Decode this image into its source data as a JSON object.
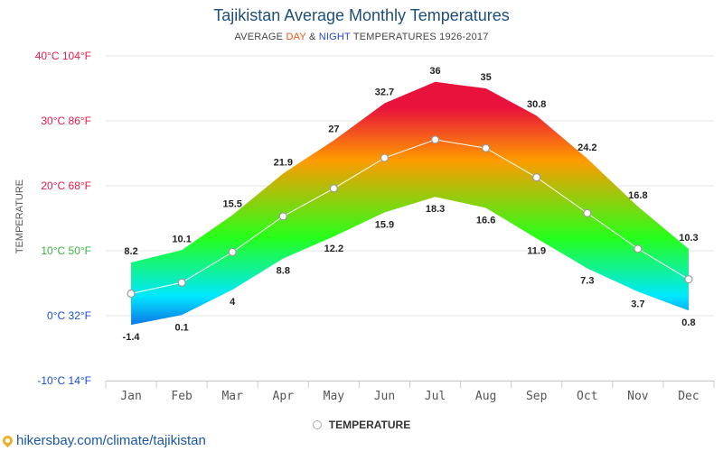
{
  "header": {
    "title": "Tajikistan Average Monthly Temperatures",
    "subtitle_prefix": "AVERAGE ",
    "subtitle_day": "DAY",
    "subtitle_amp": " & ",
    "subtitle_night": "NIGHT",
    "subtitle_suffix": " TEMPERATURES 1926-2017"
  },
  "legend": {
    "label": "TEMPERATURE"
  },
  "footer": {
    "link_text": "hikersbay.com/climate/tajikistan"
  },
  "colors": {
    "hot": "#e8123c",
    "warm": "#ff9a00",
    "mild": "#26ff1a",
    "cool": "#00e7ff",
    "cold": "#1535d8",
    "line": "#ffffff",
    "grid": "#e6e6e6"
  },
  "chart_data": {
    "type": "area",
    "title": "Tajikistan Average Monthly Temperatures",
    "ylabel": "TEMPERATURE",
    "ylim": [
      -10,
      40
    ],
    "yticks": [
      {
        "value": 40,
        "label": "40°C 104°F",
        "color": "#e6194b"
      },
      {
        "value": 30,
        "label": "30°C 86°F",
        "color": "#e6194b"
      },
      {
        "value": 20,
        "label": "20°C 68°F",
        "color": "#e6194b"
      },
      {
        "value": 10,
        "label": "10°C 50°F",
        "color": "#3cb043"
      },
      {
        "value": 0,
        "label": "0°C 32°F",
        "color": "#1a4fc9"
      },
      {
        "value": -10,
        "label": "-10°C 14°F",
        "color": "#1a4fc9"
      }
    ],
    "categories": [
      "Jan",
      "Feb",
      "Mar",
      "Apr",
      "May",
      "Jun",
      "Jul",
      "Aug",
      "Sep",
      "Oct",
      "Nov",
      "Dec"
    ],
    "series": [
      {
        "name": "DAY",
        "values": [
          8.2,
          10.1,
          15.5,
          21.9,
          27,
          32.7,
          36,
          35,
          30.8,
          24.2,
          16.8,
          10.3
        ]
      },
      {
        "name": "NIGHT",
        "values": [
          -1.4,
          0.1,
          4,
          8.8,
          12.2,
          15.9,
          18.3,
          16.6,
          11.9,
          7.3,
          3.7,
          0.8
        ]
      },
      {
        "name": "TEMPERATURE",
        "values": [
          3.4,
          5.1,
          9.8,
          15.3,
          19.6,
          24.3,
          27.1,
          25.8,
          21.3,
          15.8,
          10.3,
          5.6
        ]
      }
    ],
    "grid": true,
    "legend_position": "bottom"
  }
}
